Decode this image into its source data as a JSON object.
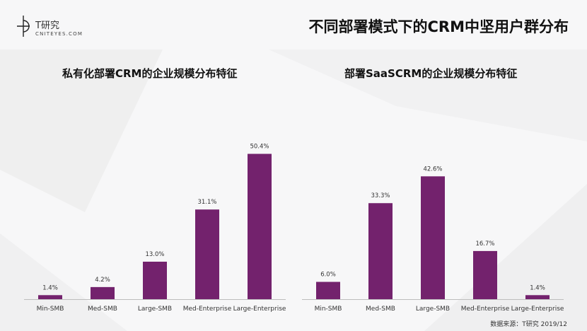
{
  "header": {
    "logo_name": "T研究",
    "logo_sub": "CNITEYES.COM",
    "title": "不同部署模式下的CRM中坚用户群分布"
  },
  "colors": {
    "bar": "#73226d",
    "axis": "#bdbdbd",
    "text": "#333333"
  },
  "source": "数据来源：T研究 2019/12",
  "chart_data": [
    {
      "type": "bar",
      "title": "私有化部署CRM的企业规模分布特征",
      "categories": [
        "Min-SMB",
        "Med-SMB",
        "Large-SMB",
        "Med-Enterprise",
        "Large-Enterprise"
      ],
      "values": [
        1.4,
        4.2,
        13.0,
        31.1,
        50.4
      ],
      "value_labels": [
        "1.4%",
        "4.2%",
        "13.0%",
        "31.1%",
        "50.4%"
      ],
      "xlabel": "",
      "ylabel": "",
      "ylim": [
        0,
        52
      ],
      "grid": false,
      "legend": "none"
    },
    {
      "type": "bar",
      "title": "部署SaaSCRM的企业规模分布特征",
      "categories": [
        "Min-SMB",
        "Med-SMB",
        "Large-SMB",
        "Med-Enterprise",
        "Large-Enterprise"
      ],
      "values": [
        6.0,
        33.3,
        42.6,
        16.7,
        1.4
      ],
      "value_labels": [
        "6.0%",
        "33.3%",
        "42.6%",
        "16.7%",
        "1.4%"
      ],
      "xlabel": "",
      "ylabel": "",
      "ylim": [
        0,
        52
      ],
      "grid": false,
      "legend": "none"
    }
  ]
}
